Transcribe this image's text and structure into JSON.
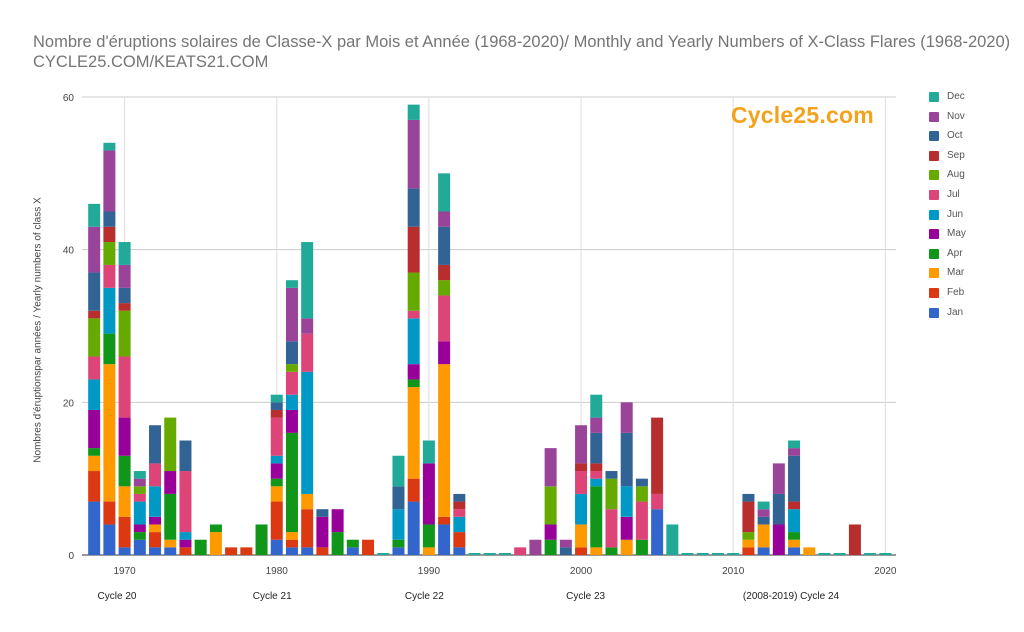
{
  "chart_data": {
    "type": "bar",
    "stacked": true,
    "title": "Nombre d'éruptions solaires de Classe-X par Mois et Année (1968-2020)/ Monthly and Yearly Numbers of X-Class Flares (1968-2020)",
    "subtitle": "CYCLE25.COM/KEATS21.COM",
    "watermark": "Cycle25.com",
    "ylabel": "Nombres d'éruptionspar années / Yearly numbers of class X",
    "xlabel": "",
    "ylim": [
      0,
      60
    ],
    "yticks": [
      0,
      20,
      40,
      60
    ],
    "xticks": [
      1970,
      1980,
      1990,
      2000,
      2010,
      2020
    ],
    "xlim": [
      1967.2,
      2020.7
    ],
    "cycle_labels": [
      {
        "label": "Cycle 20",
        "year": 1969.5
      },
      {
        "label": "Cycle 21",
        "year": 1979.7
      },
      {
        "label": "Cycle 22",
        "year": 1989.7
      },
      {
        "label": "Cycle 23",
        "year": 2000.3
      },
      {
        "label": "(2008-2019) Cycle 24",
        "year": 2013.8
      }
    ],
    "grid": true,
    "legend_position": "right",
    "months": [
      "Jan",
      "Feb",
      "Mar",
      "Apr",
      "May",
      "Jun",
      "Jul",
      "Aug",
      "Sep",
      "Oct",
      "Nov",
      "Dec"
    ],
    "colors": [
      "#3366cc",
      "#dc3912",
      "#ff9900",
      "#109618",
      "#990099",
      "#0099c6",
      "#dd4477",
      "#66aa00",
      "#b82e2e",
      "#316395",
      "#994499",
      "#22aa99"
    ],
    "x": [
      1968,
      1969,
      1970,
      1971,
      1972,
      1973,
      1974,
      1975,
      1976,
      1977,
      1978,
      1979,
      1980,
      1981,
      1982,
      1983,
      1984,
      1985,
      1986,
      1987,
      1988,
      1989,
      1990,
      1991,
      1992,
      1993,
      1994,
      1995,
      1996,
      1997,
      1998,
      1999,
      2000,
      2001,
      2002,
      2003,
      2004,
      2005,
      2006,
      2007,
      2008,
      2009,
      2010,
      2011,
      2012,
      2013,
      2014,
      2015,
      2016,
      2017,
      2018,
      2019,
      2020
    ],
    "values": [
      [
        7,
        4,
        1,
        2,
        1,
        1,
        0,
        0,
        0,
        0,
        0,
        0,
        2,
        1,
        1,
        0,
        0,
        1,
        0,
        0,
        1,
        7,
        0,
        4,
        1,
        0,
        0,
        0,
        0,
        0,
        0,
        0,
        0,
        0,
        0,
        0,
        0,
        6,
        0,
        0,
        0,
        0,
        0,
        0,
        1,
        0,
        1,
        0,
        0,
        0,
        0,
        0,
        0
      ],
      [
        4,
        3,
        4,
        0,
        2,
        0,
        1,
        0,
        0,
        1,
        1,
        0,
        5,
        1,
        5,
        1,
        0,
        0,
        2,
        0,
        0,
        3,
        0,
        1,
        2,
        0,
        0,
        0,
        0,
        0,
        0,
        0,
        1,
        0,
        0,
        0,
        0,
        0,
        0,
        0,
        0,
        0,
        0,
        1,
        0,
        0,
        0,
        0,
        0,
        0,
        0,
        0,
        0
      ],
      [
        2,
        18,
        4,
        0,
        1,
        1,
        0,
        0,
        3,
        0,
        0,
        0,
        2,
        1,
        2,
        0,
        0,
        0,
        0,
        0,
        0,
        12,
        1,
        20,
        0,
        0,
        0,
        0,
        0,
        0,
        0,
        0,
        3,
        1,
        0,
        2,
        0,
        0,
        0,
        0,
        0,
        0,
        0,
        1,
        3,
        0,
        1,
        1,
        0,
        0,
        0,
        0,
        0
      ],
      [
        1,
        4,
        4,
        1,
        0,
        6,
        0,
        2,
        1,
        0,
        0,
        4,
        1,
        13,
        0,
        0,
        3,
        1,
        0,
        0,
        1,
        1,
        3,
        0,
        0,
        0,
        0,
        0,
        0,
        0,
        2,
        0,
        0,
        8,
        1,
        0,
        2,
        0,
        0,
        0,
        0,
        0,
        0,
        0,
        0,
        0,
        1,
        0,
        0,
        0,
        0,
        0,
        0
      ],
      [
        5,
        0,
        5,
        1,
        1,
        3,
        1,
        0,
        0,
        0,
        0,
        0,
        2,
        3,
        0,
        4,
        3,
        0,
        0,
        0,
        0,
        2,
        8,
        3,
        0,
        0,
        0,
        0,
        0,
        0,
        2,
        0,
        0,
        0,
        0,
        3,
        0,
        0,
        0,
        0,
        0,
        0,
        0,
        0,
        0,
        4,
        0,
        0,
        0,
        0,
        0,
        0,
        0
      ],
      [
        4,
        6,
        0,
        3,
        4,
        0,
        1,
        0,
        0,
        0,
        0,
        0,
        1,
        2,
        16,
        0,
        0,
        0,
        0,
        0,
        4,
        6,
        0,
        0,
        2,
        0,
        0,
        0,
        0,
        0,
        0,
        0,
        4,
        1,
        0,
        4,
        0,
        0,
        0,
        0,
        0,
        0,
        0,
        0,
        0,
        0,
        3,
        0,
        0,
        0,
        0,
        0,
        0
      ],
      [
        3,
        3,
        8,
        1,
        3,
        0,
        8,
        0,
        0,
        0,
        0,
        0,
        5,
        3,
        5,
        0,
        0,
        0,
        0,
        0,
        0,
        1,
        0,
        6,
        1,
        0,
        0,
        0,
        1,
        0,
        0,
        0,
        3,
        1,
        5,
        0,
        5,
        2,
        0,
        0,
        0,
        0,
        0,
        0,
        0,
        0,
        0,
        0,
        0,
        0,
        0,
        0,
        0
      ],
      [
        5,
        3,
        6,
        1,
        0,
        7,
        0,
        0,
        0,
        0,
        0,
        0,
        0,
        1,
        0,
        0,
        0,
        0,
        0,
        0,
        0,
        5,
        0,
        2,
        0,
        0,
        0,
        0,
        0,
        0,
        5,
        0,
        0,
        0,
        4,
        0,
        2,
        0,
        0,
        0,
        0,
        0,
        0,
        1,
        0,
        0,
        0,
        0,
        0,
        0,
        0,
        0,
        0
      ],
      [
        1,
        2,
        1,
        0,
        0,
        0,
        0,
        0,
        0,
        0,
        0,
        0,
        1,
        0,
        0,
        0,
        0,
        0,
        0,
        0,
        0,
        6,
        0,
        2,
        1,
        0,
        0,
        0,
        0,
        0,
        0,
        0,
        1,
        1,
        0,
        0,
        0,
        10,
        0,
        0,
        0,
        0,
        0,
        4,
        0,
        0,
        1,
        0,
        0,
        0,
        4,
        0,
        0
      ],
      [
        5,
        2,
        2,
        0,
        5,
        0,
        4,
        0,
        0,
        0,
        0,
        0,
        1,
        3,
        0,
        1,
        0,
        0,
        0,
        0,
        3,
        5,
        0,
        5,
        1,
        0,
        0,
        0,
        0,
        0,
        0,
        1,
        0,
        4,
        1,
        7,
        1,
        0,
        0,
        0,
        0,
        0,
        0,
        1,
        1,
        4,
        6,
        0,
        0,
        0,
        0,
        0,
        0
      ],
      [
        6,
        8,
        3,
        1,
        0,
        0,
        0,
        0,
        0,
        0,
        0,
        0,
        0,
        7,
        2,
        0,
        0,
        0,
        0,
        0,
        0,
        9,
        0,
        2,
        0,
        0,
        0,
        0,
        0,
        2,
        5,
        1,
        5,
        2,
        0,
        4,
        0,
        0,
        0,
        0,
        0,
        0,
        0,
        0,
        1,
        4,
        1,
        0,
        0,
        0,
        0,
        0,
        0
      ],
      [
        3,
        1,
        3,
        1,
        0,
        0,
        0,
        0,
        0,
        0,
        0,
        0,
        1,
        1,
        10,
        0,
        0,
        0,
        0,
        0,
        4,
        2,
        3,
        5,
        0,
        0,
        0,
        0,
        0,
        0,
        0,
        0,
        0,
        3,
        0,
        0,
        0,
        0,
        4,
        0,
        0,
        0,
        0,
        0,
        1,
        0,
        1,
        0,
        0,
        0,
        0,
        0,
        0
      ]
    ]
  }
}
